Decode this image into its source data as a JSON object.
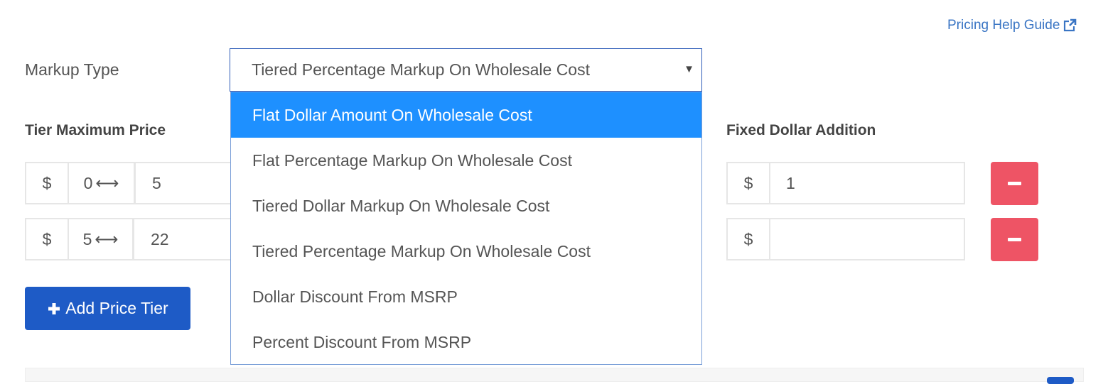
{
  "help_link": {
    "label": "Pricing Help Guide",
    "icon": "external-link-icon"
  },
  "markup": {
    "label": "Markup Type",
    "selected": "Tiered Percentage Markup On Wholesale Cost",
    "options": [
      "Flat Dollar Amount On Wholesale Cost",
      "Flat Percentage Markup On Wholesale Cost",
      "Tiered Dollar Markup On Wholesale Cost",
      "Tiered Percentage Markup On Wholesale Cost",
      "Dollar Discount From MSRP",
      "Percent Discount From MSRP"
    ],
    "highlighted_index": 0
  },
  "headers": {
    "tier_max": "Tier Maximum Price",
    "fixed_dollar": "Fixed Dollar Addition"
  },
  "tiers": [
    {
      "currency": "$",
      "min": "0",
      "arrow": "⟷",
      "max": "5",
      "fixed_currency": "$",
      "fixed": "1"
    },
    {
      "currency": "$",
      "min": "5",
      "arrow": "⟷",
      "max": "22",
      "fixed_currency": "$",
      "fixed": ""
    }
  ],
  "add_button": {
    "label": "Add Price Tier",
    "icon": "plus-icon"
  },
  "colors": {
    "primary": "#1e5bc6",
    "danger": "#ee5465",
    "highlight": "#1e90ff",
    "link": "#3a75c4"
  }
}
